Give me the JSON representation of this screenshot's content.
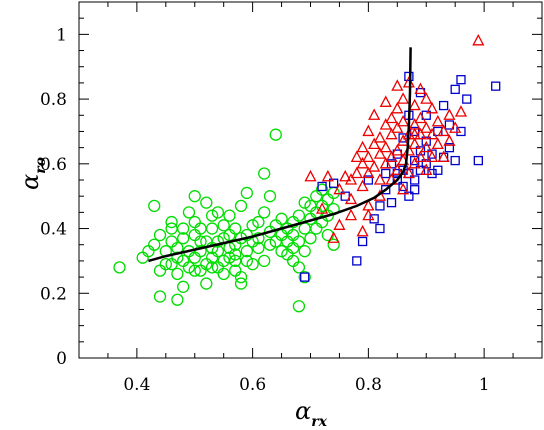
{
  "chart_data": {
    "type": "scatter",
    "xlabel": "α",
    "xlabel_sub": "rx",
    "ylabel": "α",
    "ylabel_sub": "ro",
    "xlim": [
      0.3,
      1.1
    ],
    "ylim": [
      0,
      1.1
    ],
    "xticks": [
      "0.4",
      "0.6",
      "0.8",
      "1"
    ],
    "xtick_values": [
      0.4,
      0.6,
      0.8,
      1.0
    ],
    "yticks": [
      "0",
      "0.2",
      "0.4",
      "0.6",
      "0.8",
      "1"
    ],
    "ytick_values": [
      0,
      0.2,
      0.4,
      0.6,
      0.8,
      1.0
    ],
    "grid": false,
    "colors": {
      "circle": "#00dd00",
      "square": "#0000cc",
      "triangle": "#ee0000",
      "curve": "#000000"
    },
    "series": [
      {
        "marker": "circle",
        "color": "#00dd00",
        "points": [
          [
            0.37,
            0.28
          ],
          [
            0.41,
            0.31
          ],
          [
            0.42,
            0.33
          ],
          [
            0.43,
            0.47
          ],
          [
            0.43,
            0.35
          ],
          [
            0.44,
            0.19
          ],
          [
            0.44,
            0.38
          ],
          [
            0.45,
            0.29
          ],
          [
            0.45,
            0.33
          ],
          [
            0.46,
            0.36
          ],
          [
            0.46,
            0.29
          ],
          [
            0.46,
            0.42
          ],
          [
            0.47,
            0.18
          ],
          [
            0.47,
            0.31
          ],
          [
            0.47,
            0.26
          ],
          [
            0.47,
            0.34
          ],
          [
            0.48,
            0.4
          ],
          [
            0.48,
            0.3
          ],
          [
            0.48,
            0.37
          ],
          [
            0.49,
            0.28
          ],
          [
            0.49,
            0.45
          ],
          [
            0.49,
            0.33
          ],
          [
            0.5,
            0.27
          ],
          [
            0.5,
            0.31
          ],
          [
            0.5,
            0.38
          ],
          [
            0.5,
            0.42
          ],
          [
            0.51,
            0.27
          ],
          [
            0.51,
            0.33
          ],
          [
            0.51,
            0.36
          ],
          [
            0.51,
            0.4
          ],
          [
            0.52,
            0.29
          ],
          [
            0.52,
            0.48
          ],
          [
            0.52,
            0.36
          ],
          [
            0.52,
            0.23
          ],
          [
            0.53,
            0.31
          ],
          [
            0.53,
            0.34
          ],
          [
            0.53,
            0.4
          ],
          [
            0.53,
            0.28
          ],
          [
            0.54,
            0.28
          ],
          [
            0.54,
            0.36
          ],
          [
            0.54,
            0.33
          ],
          [
            0.55,
            0.3
          ],
          [
            0.55,
            0.37
          ],
          [
            0.55,
            0.41
          ],
          [
            0.55,
            0.26
          ],
          [
            0.56,
            0.34
          ],
          [
            0.56,
            0.31
          ],
          [
            0.56,
            0.38
          ],
          [
            0.56,
            0.44
          ],
          [
            0.57,
            0.27
          ],
          [
            0.57,
            0.3
          ],
          [
            0.57,
            0.35
          ],
          [
            0.57,
            0.4
          ],
          [
            0.58,
            0.23
          ],
          [
            0.58,
            0.37
          ],
          [
            0.58,
            0.25
          ],
          [
            0.58,
            0.47
          ],
          [
            0.59,
            0.38
          ],
          [
            0.59,
            0.3
          ],
          [
            0.59,
            0.33
          ],
          [
            0.6,
            0.36
          ],
          [
            0.6,
            0.41
          ],
          [
            0.6,
            0.29
          ],
          [
            0.61,
            0.37
          ],
          [
            0.61,
            0.34
          ],
          [
            0.61,
            0.42
          ],
          [
            0.62,
            0.45
          ],
          [
            0.62,
            0.3
          ],
          [
            0.62,
            0.57
          ],
          [
            0.63,
            0.35
          ],
          [
            0.63,
            0.39
          ],
          [
            0.63,
            0.5
          ],
          [
            0.64,
            0.36
          ],
          [
            0.64,
            0.41
          ],
          [
            0.64,
            0.69
          ],
          [
            0.65,
            0.38
          ],
          [
            0.65,
            0.33
          ],
          [
            0.65,
            0.43
          ],
          [
            0.66,
            0.32
          ],
          [
            0.66,
            0.36
          ],
          [
            0.66,
            0.4
          ],
          [
            0.67,
            0.34
          ],
          [
            0.67,
            0.3
          ],
          [
            0.67,
            0.38
          ],
          [
            0.67,
            0.42
          ],
          [
            0.68,
            0.28
          ],
          [
            0.68,
            0.36
          ],
          [
            0.68,
            0.44
          ],
          [
            0.68,
            0.16
          ],
          [
            0.69,
            0.33
          ],
          [
            0.69,
            0.4
          ],
          [
            0.69,
            0.48
          ],
          [
            0.69,
            0.25
          ],
          [
            0.7,
            0.37
          ],
          [
            0.7,
            0.43
          ],
          [
            0.7,
            0.47
          ],
          [
            0.71,
            0.4
          ],
          [
            0.71,
            0.45
          ],
          [
            0.71,
            0.5
          ],
          [
            0.72,
            0.42
          ],
          [
            0.72,
            0.47
          ],
          [
            0.72,
            0.52
          ],
          [
            0.73,
            0.38
          ],
          [
            0.73,
            0.44
          ],
          [
            0.73,
            0.49
          ],
          [
            0.74,
            0.46
          ],
          [
            0.74,
            0.35
          ],
          [
            0.74,
            0.51
          ],
          [
            0.5,
            0.5
          ],
          [
            0.46,
            0.4
          ],
          [
            0.44,
            0.27
          ],
          [
            0.48,
            0.22
          ],
          [
            0.54,
            0.45
          ],
          [
            0.59,
            0.51
          ],
          [
            0.53,
            0.44
          ],
          [
            0.57,
            0.32
          ]
        ]
      },
      {
        "marker": "square",
        "color": "#0000cc",
        "points": [
          [
            0.69,
            0.25
          ],
          [
            0.72,
            0.53
          ],
          [
            0.74,
            0.54
          ],
          [
            0.76,
            0.5
          ],
          [
            0.78,
            0.3
          ],
          [
            0.79,
            0.36
          ],
          [
            0.8,
            0.55
          ],
          [
            0.81,
            0.43
          ],
          [
            0.82,
            0.4
          ],
          [
            0.82,
            0.47
          ],
          [
            0.83,
            0.52
          ],
          [
            0.83,
            0.57
          ],
          [
            0.84,
            0.48
          ],
          [
            0.84,
            0.6
          ],
          [
            0.85,
            0.55
          ],
          [
            0.85,
            0.63
          ],
          [
            0.86,
            0.53
          ],
          [
            0.86,
            0.58
          ],
          [
            0.86,
            0.68
          ],
          [
            0.87,
            0.5
          ],
          [
            0.87,
            0.57
          ],
          [
            0.87,
            0.75
          ],
          [
            0.87,
            0.87
          ],
          [
            0.88,
            0.55
          ],
          [
            0.88,
            0.61
          ],
          [
            0.88,
            0.7
          ],
          [
            0.89,
            0.58
          ],
          [
            0.89,
            0.64
          ],
          [
            0.89,
            0.82
          ],
          [
            0.9,
            0.6
          ],
          [
            0.9,
            0.67
          ],
          [
            0.9,
            0.75
          ],
          [
            0.91,
            0.57
          ],
          [
            0.91,
            0.63
          ],
          [
            0.92,
            0.58
          ],
          [
            0.92,
            0.7
          ],
          [
            0.93,
            0.62
          ],
          [
            0.93,
            0.78
          ],
          [
            0.94,
            0.65
          ],
          [
            0.94,
            0.72
          ],
          [
            0.95,
            0.61
          ],
          [
            0.95,
            0.83
          ],
          [
            0.96,
            0.7
          ],
          [
            0.96,
            0.86
          ],
          [
            0.97,
            0.8
          ],
          [
            0.99,
            0.61
          ],
          [
            1.02,
            0.84
          ],
          [
            0.85,
            0.57
          ],
          [
            0.88,
            0.52
          ]
        ]
      },
      {
        "marker": "triangle",
        "color": "#ee0000",
        "points": [
          [
            0.73,
            0.56
          ],
          [
            0.75,
            0.52
          ],
          [
            0.76,
            0.56
          ],
          [
            0.77,
            0.49
          ],
          [
            0.77,
            0.55
          ],
          [
            0.78,
            0.57
          ],
          [
            0.78,
            0.62
          ],
          [
            0.79,
            0.53
          ],
          [
            0.79,
            0.6
          ],
          [
            0.79,
            0.65
          ],
          [
            0.8,
            0.57
          ],
          [
            0.8,
            0.7
          ],
          [
            0.8,
            0.47
          ],
          [
            0.8,
            0.62
          ],
          [
            0.81,
            0.59
          ],
          [
            0.81,
            0.66
          ],
          [
            0.81,
            0.75
          ],
          [
            0.82,
            0.55
          ],
          [
            0.82,
            0.63
          ],
          [
            0.82,
            0.68
          ],
          [
            0.82,
            0.5
          ],
          [
            0.83,
            0.6
          ],
          [
            0.83,
            0.65
          ],
          [
            0.83,
            0.72
          ],
          [
            0.83,
            0.79
          ],
          [
            0.84,
            0.55
          ],
          [
            0.84,
            0.62
          ],
          [
            0.84,
            0.69
          ],
          [
            0.84,
            0.74
          ],
          [
            0.85,
            0.58
          ],
          [
            0.85,
            0.64
          ],
          [
            0.85,
            0.71
          ],
          [
            0.85,
            0.77
          ],
          [
            0.86,
            0.61
          ],
          [
            0.86,
            0.67
          ],
          [
            0.86,
            0.73
          ],
          [
            0.86,
            0.8
          ],
          [
            0.87,
            0.57
          ],
          [
            0.87,
            0.64
          ],
          [
            0.87,
            0.69
          ],
          [
            0.87,
            0.85
          ],
          [
            0.88,
            0.6
          ],
          [
            0.88,
            0.66
          ],
          [
            0.88,
            0.72
          ],
          [
            0.88,
            0.78
          ],
          [
            0.89,
            0.62
          ],
          [
            0.89,
            0.69
          ],
          [
            0.89,
            0.74
          ],
          [
            0.89,
            0.83
          ],
          [
            0.9,
            0.58
          ],
          [
            0.9,
            0.65
          ],
          [
            0.9,
            0.71
          ],
          [
            0.9,
            0.8
          ],
          [
            0.91,
            0.62
          ],
          [
            0.91,
            0.69
          ],
          [
            0.91,
            0.77
          ],
          [
            0.92,
            0.66
          ],
          [
            0.92,
            0.73
          ],
          [
            0.93,
            0.62
          ],
          [
            0.93,
            0.7
          ],
          [
            0.94,
            0.75
          ],
          [
            0.94,
            0.67
          ],
          [
            0.95,
            0.71
          ],
          [
            0.96,
            0.76
          ],
          [
            0.99,
            0.98
          ],
          [
            0.74,
            0.37
          ],
          [
            0.75,
            0.41
          ],
          [
            0.77,
            0.44
          ],
          [
            0.79,
            0.39
          ],
          [
            0.8,
            0.44
          ],
          [
            0.72,
            0.46
          ],
          [
            0.7,
            0.56
          ],
          [
            0.86,
            0.52
          ],
          [
            0.88,
            0.69
          ],
          [
            0.85,
            0.84
          ]
        ]
      }
    ],
    "curve": [
      [
        0.42,
        0.3
      ],
      [
        0.45,
        0.315
      ],
      [
        0.5,
        0.335
      ],
      [
        0.55,
        0.355
      ],
      [
        0.6,
        0.375
      ],
      [
        0.65,
        0.4
      ],
      [
        0.7,
        0.425
      ],
      [
        0.74,
        0.445
      ],
      [
        0.78,
        0.47
      ],
      [
        0.81,
        0.495
      ],
      [
        0.83,
        0.52
      ],
      [
        0.85,
        0.55
      ],
      [
        0.86,
        0.575
      ],
      [
        0.865,
        0.6
      ],
      [
        0.868,
        0.65
      ],
      [
        0.87,
        0.72
      ],
      [
        0.872,
        0.82
      ],
      [
        0.873,
        0.96
      ]
    ]
  }
}
